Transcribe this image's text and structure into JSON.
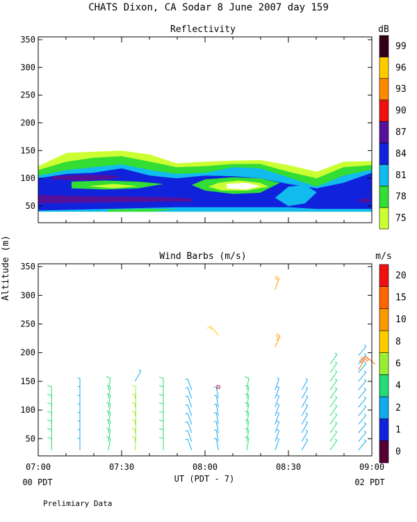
{
  "figure": {
    "title": "CHATS Dixon, CA  Sodar    8 June 2007   day 159",
    "shared_ylabel": "Altitude (m)",
    "xlabel": "UT  (PDT - 7)",
    "pdt_left": "00 PDT",
    "pdt_right": "02 PDT",
    "footnote": "Prelimiary Data"
  },
  "chart_data": [
    {
      "type": "heatmap",
      "title": "Reflectivity",
      "colorbar_unit": "dB",
      "x_ticks": [
        "07:00",
        "07:30",
        "08:00",
        "08:30",
        "09:00"
      ],
      "x_tick_hours": [
        7.0,
        7.5,
        8.0,
        8.5,
        9.0
      ],
      "xlim": [
        7.0,
        9.0
      ],
      "ylim": [
        20,
        355
      ],
      "y_ticks": [
        50,
        100,
        150,
        200,
        250,
        300,
        350
      ],
      "levels": [
        {
          "label": "75",
          "color": "#ccff33"
        },
        {
          "label": "78",
          "color": "#33dd33"
        },
        {
          "label": "81",
          "color": "#11bbee"
        },
        {
          "label": "84",
          "color": "#1122dd"
        },
        {
          "label": "87",
          "color": "#551199"
        },
        {
          "label": "90",
          "color": "#ee1111"
        },
        {
          "label": "93",
          "color": "#ff8800"
        },
        {
          "label": "96",
          "color": "#ffcc00"
        },
        {
          "label": "99",
          "color": "#33001a"
        }
      ],
      "bands": [
        {
          "level": 0,
          "points": [
            [
              7.0,
              122
            ],
            [
              7.17,
              146
            ],
            [
              7.33,
              148
            ],
            [
              7.5,
              150
            ],
            [
              7.67,
              143
            ],
            [
              7.83,
              127
            ],
            [
              8.0,
              130
            ],
            [
              8.17,
              132
            ],
            [
              8.33,
              133
            ],
            [
              8.5,
              124
            ],
            [
              8.67,
              112
            ],
            [
              8.83,
              130
            ],
            [
              9.0,
              131
            ],
            [
              9.0,
              40
            ],
            [
              7.0,
              40
            ]
          ]
        },
        {
          "level": 1,
          "points": [
            [
              7.0,
              115
            ],
            [
              7.17,
              130
            ],
            [
              7.33,
              137
            ],
            [
              7.5,
              140
            ],
            [
              7.67,
              130
            ],
            [
              7.83,
              120
            ],
            [
              8.0,
              122
            ],
            [
              8.17,
              126
            ],
            [
              8.33,
              126
            ],
            [
              8.5,
              112
            ],
            [
              8.67,
              100
            ],
            [
              8.83,
              120
            ],
            [
              9.0,
              124
            ],
            [
              9.0,
              40
            ],
            [
              7.0,
              40
            ]
          ]
        },
        {
          "level": 2,
          "points": [
            [
              7.0,
              105
            ],
            [
              7.17,
              115
            ],
            [
              7.33,
              120
            ],
            [
              7.5,
              125
            ],
            [
              7.67,
              115
            ],
            [
              7.83,
              108
            ],
            [
              8.0,
              110
            ],
            [
              8.17,
              120
            ],
            [
              8.33,
              118
            ],
            [
              8.5,
              102
            ],
            [
              8.67,
              85
            ],
            [
              8.83,
              105
            ],
            [
              9.0,
              116
            ],
            [
              9.0,
              40
            ],
            [
              7.0,
              40
            ]
          ]
        },
        {
          "level": 3,
          "points": [
            [
              7.0,
              100
            ],
            [
              7.17,
              108
            ],
            [
              7.33,
              110
            ],
            [
              7.5,
              118
            ],
            [
              7.67,
              105
            ],
            [
              7.83,
              100
            ],
            [
              8.0,
              105
            ],
            [
              8.17,
              104
            ],
            [
              8.33,
              100
            ],
            [
              8.5,
              90
            ],
            [
              8.67,
              82
            ],
            [
              8.83,
              92
            ],
            [
              9.0,
              110
            ],
            [
              9.0,
              45
            ],
            [
              8.67,
              45
            ],
            [
              8.5,
              48
            ],
            [
              7.83,
              48
            ],
            [
              7.0,
              42
            ]
          ]
        },
        {
          "level": 4,
          "points": [
            [
              7.08,
              104
            ],
            [
              7.25,
              106
            ],
            [
              7.42,
              106
            ],
            [
              7.5,
              103
            ],
            [
              7.42,
              98
            ],
            [
              7.25,
              96
            ],
            [
              7.08,
              98
            ]
          ]
        },
        {
          "level": 4,
          "points": [
            [
              7.0,
              70
            ],
            [
              7.25,
              68
            ],
            [
              7.5,
              67
            ],
            [
              7.75,
              66
            ],
            [
              7.92,
              64
            ],
            [
              7.92,
              58
            ],
            [
              7.75,
              58
            ],
            [
              7.5,
              57
            ],
            [
              7.25,
              56
            ],
            [
              7.0,
              55
            ]
          ]
        },
        {
          "level": 1,
          "points": [
            [
              7.2,
              94
            ],
            [
              7.4,
              96
            ],
            [
              7.6,
              94
            ],
            [
              7.75,
              90
            ],
            [
              7.6,
              82
            ],
            [
              7.4,
              80
            ],
            [
              7.2,
              82
            ]
          ]
        },
        {
          "level": 0,
          "points": [
            [
              7.3,
              86
            ],
            [
              7.45,
              90
            ],
            [
              7.6,
              86
            ],
            [
              7.45,
              82
            ]
          ]
        },
        {
          "level": 1,
          "points": [
            [
              8.0,
              98
            ],
            [
              8.17,
              102
            ],
            [
              8.33,
              100
            ],
            [
              8.45,
              92
            ],
            [
              8.33,
              74
            ],
            [
              8.17,
              72
            ],
            [
              8.0,
              78
            ],
            [
              7.92,
              88
            ]
          ]
        },
        {
          "level": 0,
          "points": [
            [
              8.08,
              92
            ],
            [
              8.2,
              96
            ],
            [
              8.33,
              92
            ],
            [
              8.38,
              85
            ],
            [
              8.25,
              78
            ],
            [
              8.1,
              78
            ],
            [
              8.02,
              85
            ]
          ]
        },
        {
          "level": -1,
          "points": [
            [
              8.13,
              90
            ],
            [
              8.25,
              92
            ],
            [
              8.33,
              86
            ],
            [
              8.25,
              80
            ],
            [
              8.13,
              82
            ]
          ]
        },
        {
          "level": 2,
          "points": [
            [
              8.5,
              85
            ],
            [
              8.6,
              88
            ],
            [
              8.67,
              75
            ],
            [
              8.6,
              55
            ],
            [
              8.5,
              50
            ],
            [
              8.42,
              65
            ]
          ]
        },
        {
          "level": 4,
          "points": [
            [
              8.92,
              62
            ],
            [
              8.97,
              64
            ],
            [
              9.0,
              60
            ],
            [
              8.97,
              56
            ],
            [
              8.92,
              58
            ]
          ]
        },
        {
          "level": 1,
          "points": [
            [
              7.42,
              44
            ],
            [
              7.67,
              45
            ],
            [
              7.83,
              44
            ],
            [
              7.67,
              40
            ],
            [
              7.42,
              40
            ]
          ]
        }
      ]
    },
    {
      "type": "scatter",
      "subtype": "wind_barbs",
      "title": "Wind Barbs (m/s)",
      "colorbar_unit": "m/s",
      "x_ticks": [
        "07:00",
        "07:30",
        "08:00",
        "08:30",
        "09:00"
      ],
      "x_tick_hours": [
        7.0,
        7.5,
        8.0,
        8.5,
        9.0
      ],
      "xlim": [
        7.0,
        9.0
      ],
      "ylim": [
        20,
        355
      ],
      "y_ticks": [
        50,
        100,
        150,
        200,
        250,
        300,
        350
      ],
      "levels": [
        {
          "label": "0",
          "color": "#550033"
        },
        {
          "label": "1",
          "color": "#1122dd"
        },
        {
          "label": "2",
          "color": "#11aaee"
        },
        {
          "label": "4",
          "color": "#22dd77"
        },
        {
          "label": "6",
          "color": "#99ee33"
        },
        {
          "label": "8",
          "color": "#ffcc00"
        },
        {
          "label": "10",
          "color": "#ff9900"
        },
        {
          "label": "15",
          "color": "#ff6600"
        },
        {
          "label": "20",
          "color": "#ee1111"
        }
      ],
      "barb_rows": [
        {
          "hour": 7.08,
          "speed": 5.5,
          "dir": 0,
          "heights": [
            30,
            45,
            60,
            75,
            90,
            105,
            120
          ]
        },
        {
          "hour": 7.25,
          "speed": 3.0,
          "dir": 0,
          "heights": [
            30,
            45,
            60,
            75,
            90,
            105,
            120,
            135
          ]
        },
        {
          "hour": 7.42,
          "speed": 5.5,
          "dir": 10,
          "heights": [
            30,
            45,
            60,
            75,
            90,
            105,
            120,
            135
          ]
        },
        {
          "hour": 7.58,
          "speed": 6.0,
          "dir": 5,
          "heights": [
            30,
            45,
            60,
            75,
            90,
            105,
            120
          ]
        },
        {
          "hour": 7.75,
          "speed": 5.5,
          "dir": 0,
          "heights": [
            30,
            45,
            60,
            75,
            90,
            105,
            120,
            135
          ]
        },
        {
          "hour": 7.92,
          "speed": 3.0,
          "dir": 340,
          "heights": [
            30,
            45,
            60,
            75,
            90,
            105,
            120,
            135
          ]
        },
        {
          "hour": 8.08,
          "speed": 3.5,
          "dir": 350,
          "heights": [
            30,
            45,
            60,
            75,
            90,
            105,
            120
          ]
        },
        {
          "hour": 8.25,
          "speed": 5.5,
          "dir": 10,
          "heights": [
            30,
            45,
            60,
            75,
            90,
            105,
            120,
            135
          ]
        },
        {
          "hour": 8.42,
          "speed": 3.0,
          "dir": 20,
          "heights": [
            30,
            45,
            60,
            75,
            90,
            105,
            120,
            135
          ]
        },
        {
          "hour": 8.58,
          "speed": 3.5,
          "dir": 30,
          "heights": [
            30,
            45,
            60,
            75,
            90,
            105,
            120,
            135
          ]
        },
        {
          "hour": 8.75,
          "speed": 4.0,
          "dir": 35,
          "heights": [
            30,
            45,
            60,
            75,
            90,
            105,
            120,
            135,
            150,
            165,
            180
          ]
        },
        {
          "hour": 8.92,
          "speed": 3.0,
          "dir": 40,
          "heights": [
            30,
            45,
            60,
            75,
            90,
            105,
            120,
            135,
            150,
            165,
            180,
            195
          ]
        }
      ],
      "extra_barbs": [
        {
          "hour": 7.58,
          "alt": 150,
          "speed": 2.5,
          "dir": 30
        },
        {
          "hour": 8.08,
          "alt": 230,
          "speed": 9.5,
          "dir": 320
        },
        {
          "hour": 8.42,
          "alt": 310,
          "speed": 10.0,
          "dir": 20
        },
        {
          "hour": 8.42,
          "alt": 210,
          "speed": 14.0,
          "dir": 25
        },
        {
          "hour": 8.92,
          "alt": 170,
          "speed": 17.0,
          "dir": 30
        },
        {
          "hour": 9.02,
          "alt": 180,
          "speed": 16.0,
          "dir": 310
        }
      ],
      "markers": [
        {
          "hour": 8.08,
          "alt": 140,
          "color": "#aa2244"
        }
      ]
    }
  ]
}
